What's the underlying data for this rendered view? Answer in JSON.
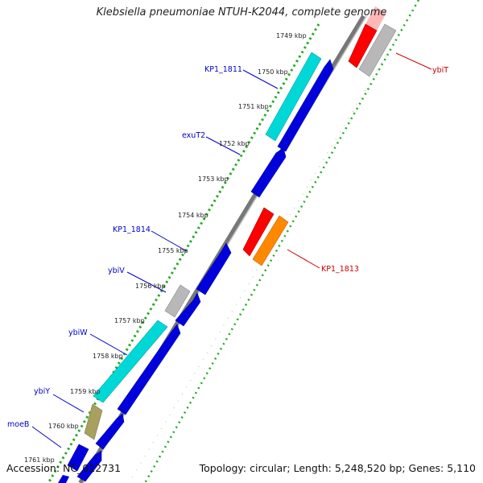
{
  "title": "Klebsiella pneumoniae NTUH-K2044, complete genome",
  "accession": "Accession: NC_012731",
  "summary": "Topology: circular; Length: 5,248,520 bp; Genes: 5,110",
  "ticks": [
    "1749 kbp",
    "1750 kbp",
    "1751 kbp",
    "1752 kbp",
    "1753 kbp",
    "1754 kbp",
    "1755 kbp",
    "1756 kbp",
    "1757 kbp",
    "1758 kbp",
    "1759 kbp",
    "1760 kbp",
    "1761 kbp"
  ],
  "gene_labels_blue": [
    "KP1_1811",
    "exuT2",
    "KP1_1814",
    "ybiV",
    "ybiW",
    "ybiY",
    "moeB"
  ],
  "gene_labels_red": [
    "ybiT",
    "KP1_1813"
  ],
  "colors": {
    "forward_gene": "#0000dd",
    "reverse_gene": "#ff0000",
    "highlight_cyan": "#00d8d8",
    "highlight_orange": "#ff8800",
    "gray_gene": "#b8b8b8",
    "olive_gene": "#a8a060",
    "backbone": "#777777",
    "dots": "#22aa22",
    "label_blue": "#0000cc",
    "label_red": "#cc0000"
  }
}
